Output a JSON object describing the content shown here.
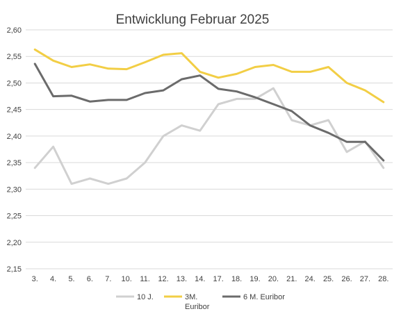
{
  "chart_data": {
    "type": "line",
    "title": "Entwicklung Februar 2025",
    "xlabel": "",
    "ylabel": "",
    "categories": [
      "3.",
      "4.",
      "5.",
      "6.",
      "7.",
      "10.",
      "11.",
      "12.",
      "13.",
      "14.",
      "17.",
      "18.",
      "19.",
      "20.",
      "21.",
      "24.",
      "25.",
      "26.",
      "27.",
      "28."
    ],
    "ylim": [
      2.15,
      2.6
    ],
    "yticks": [
      "2,15",
      "2,20",
      "2,25",
      "2,30",
      "2,35",
      "2,40",
      "2,45",
      "2,50",
      "2,55",
      "2,60"
    ],
    "grid": true,
    "legend_position": "bottom",
    "series": [
      {
        "name": "10 J.",
        "color": "#d0d0d0",
        "values": [
          2.34,
          2.38,
          2.31,
          2.32,
          2.31,
          2.32,
          2.35,
          2.4,
          2.42,
          2.41,
          2.46,
          2.47,
          2.47,
          2.49,
          2.43,
          2.42,
          2.43,
          2.37,
          2.39,
          2.34
        ]
      },
      {
        "name": "3M. Euribor",
        "legend_lines": [
          "3M.",
          "Euribor"
        ],
        "color": "#f2ce45",
        "values": [
          2.563,
          2.542,
          2.53,
          2.535,
          2.527,
          2.526,
          2.539,
          2.553,
          2.556,
          2.521,
          2.51,
          2.517,
          2.53,
          2.534,
          2.521,
          2.521,
          2.53,
          2.5,
          2.486,
          2.464
        ]
      },
      {
        "name": "6 M. Euribor",
        "color": "#6b6b6b",
        "values": [
          2.536,
          2.475,
          2.476,
          2.465,
          2.468,
          2.468,
          2.481,
          2.486,
          2.507,
          2.514,
          2.489,
          2.484,
          2.473,
          2.46,
          2.447,
          2.42,
          2.406,
          2.389,
          2.389,
          2.354
        ]
      }
    ]
  }
}
